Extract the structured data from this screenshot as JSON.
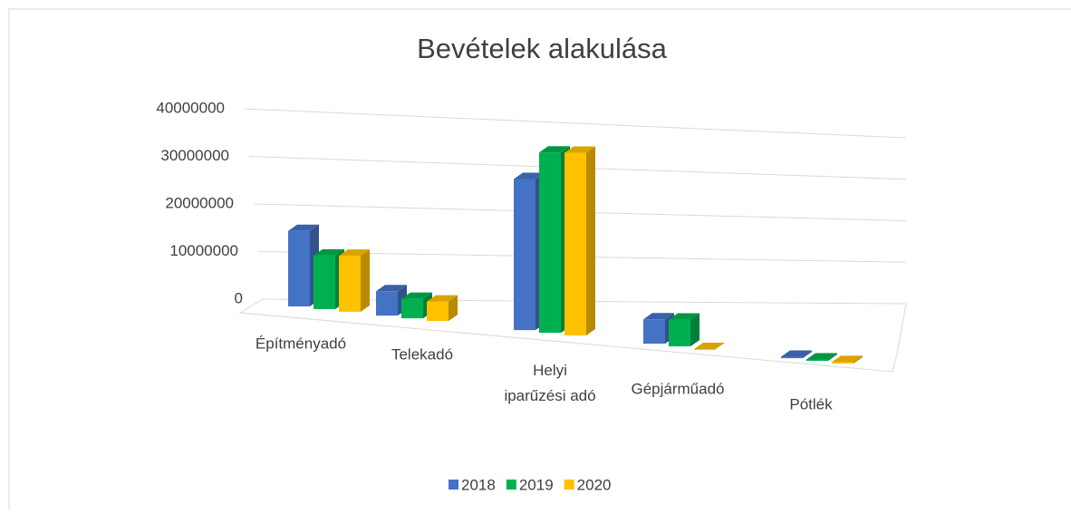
{
  "chart_data": {
    "type": "bar3d",
    "title": "Bevételek alakulása",
    "categories": [
      "Építményadó",
      "Telekadó",
      "Helyi iparűzési adó",
      "Gépjárműadó",
      "Pótlék"
    ],
    "series": [
      {
        "name": "2018",
        "color": "#4472c4",
        "values": [
          15500000,
          5000000,
          31000000,
          5000000,
          300000
        ]
      },
      {
        "name": "2019",
        "color": "#00b050",
        "values": [
          11000000,
          4000000,
          37000000,
          5500000,
          300000
        ]
      },
      {
        "name": "2020",
        "color": "#ffc000",
        "values": [
          11500000,
          4000000,
          37500000,
          0,
          300000
        ]
      }
    ],
    "ylim": [
      0,
      40000000
    ],
    "yticks": [
      0,
      10000000,
      20000000,
      30000000,
      40000000
    ],
    "grid": true,
    "legend": "bottom"
  }
}
